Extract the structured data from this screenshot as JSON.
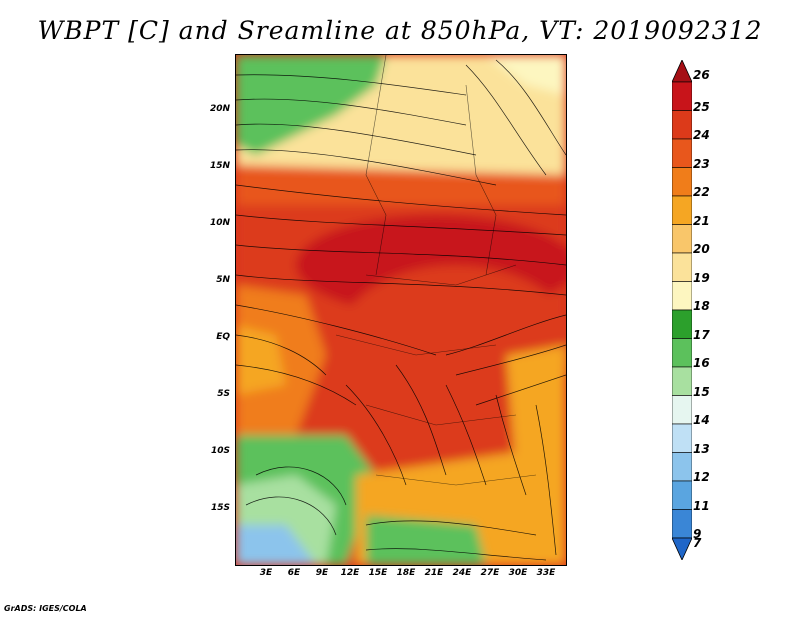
{
  "title": "WBPT [C] and Sreamline at 850hPa, VT: 2019092312",
  "credit": "GrADS: IGES/COLA",
  "map": {
    "variable": "WBPT [C]",
    "overlay": "streamlines",
    "level": "850hPa",
    "valid_time": "2019092312",
    "lat_labels": [
      "20N",
      "15N",
      "10N",
      "5N",
      "EQ",
      "5S",
      "10S",
      "15S"
    ],
    "lon_labels": [
      "3E",
      "6E",
      "9E",
      "12E",
      "15E",
      "18E",
      "21E",
      "24E",
      "27E",
      "30E",
      "33E"
    ]
  },
  "colorbar": {
    "labels": [
      "26",
      "25",
      "24",
      "23",
      "22",
      "21",
      "20",
      "19",
      "18",
      "17",
      "16",
      "15",
      "14",
      "13",
      "12",
      "11",
      "9",
      "7"
    ],
    "colors": [
      "#a50f15",
      "#c8141a",
      "#dc3a1a",
      "#e8571c",
      "#f07d1a",
      "#f5a623",
      "#f9c66a",
      "#fbe29a",
      "#fdf6c0",
      "#2ca02c",
      "#5cc15c",
      "#a8e0a0",
      "#e6f6f0",
      "#bfe0f5",
      "#8cc4ec",
      "#5aa5e0",
      "#3a86d6",
      "#1f66c8"
    ]
  }
}
